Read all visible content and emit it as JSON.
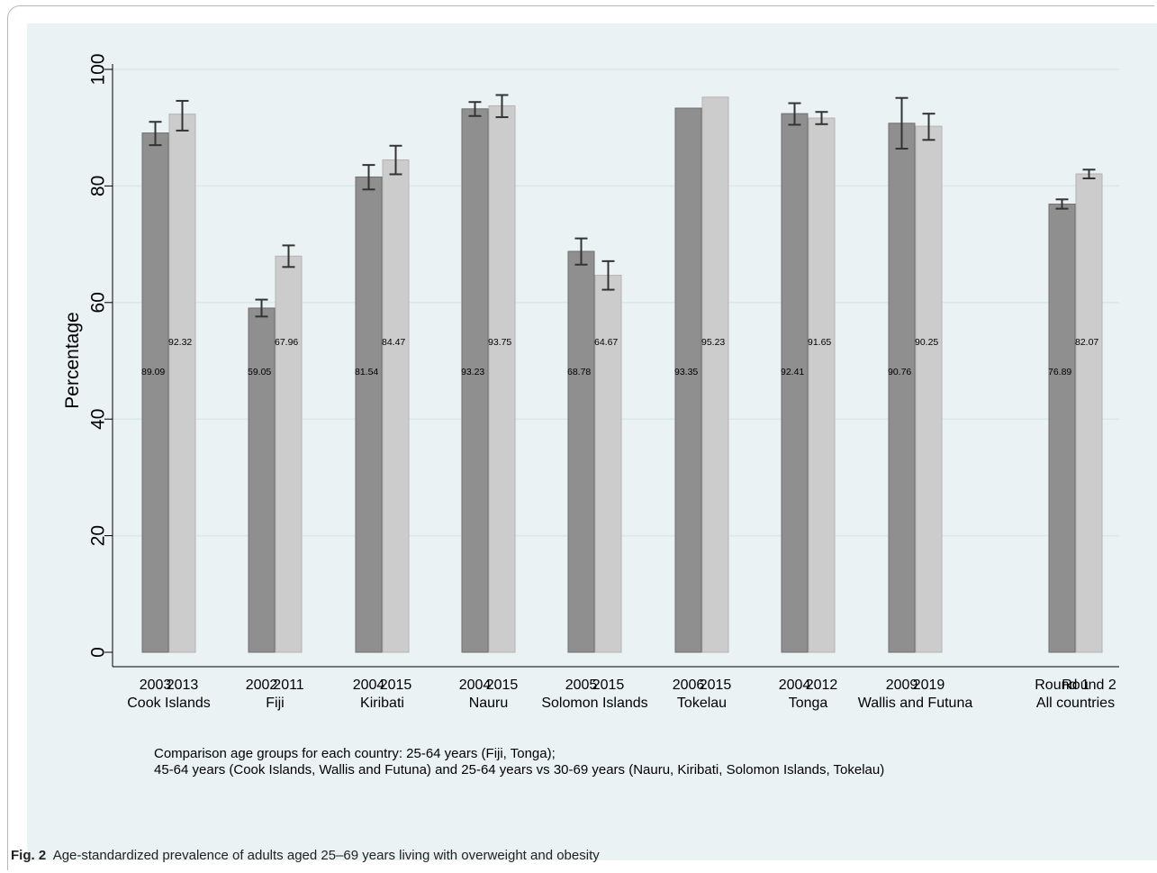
{
  "figure": {
    "caption_label": "Fig. 2",
    "caption_text": "Age-standardized prevalence of adults aged 25–69 years living with overweight and obesity"
  },
  "note": {
    "line1": "Comparison age groups for each country: 25-64 years (Fiji, Tonga);",
    "line2": "45-64 years (Cook Islands, Wallis and Futuna) and 25-64 years vs 30-69 years (Nauru, Kiribati, Solomon Islands, Tokelau)"
  },
  "colors": {
    "panel_bg": "#eaf2f3",
    "bar_round1": "#8f8f8f",
    "bar_round2": "#cccccc",
    "gridline": "#d9e8ea",
    "errorbar": "#333333"
  },
  "chart_data": {
    "type": "bar",
    "title": "",
    "xlabel": "",
    "ylabel": "Percentage",
    "ylim": [
      0,
      100
    ],
    "yticks": [
      "0",
      "20",
      "40",
      "60",
      "80",
      "100"
    ],
    "grid": true,
    "groups": [
      {
        "name": "Cook Islands",
        "bars": [
          {
            "label": "2003",
            "value": 89.09,
            "display": "89.09",
            "ci": [
              87.0,
              91.0
            ]
          },
          {
            "label": "2013",
            "value": 92.32,
            "display": "92.32",
            "ci": [
              89.5,
              94.6
            ]
          }
        ]
      },
      {
        "name": "Fiji",
        "bars": [
          {
            "label": "2002",
            "value": 59.05,
            "display": "59.05",
            "ci": [
              57.6,
              60.5
            ]
          },
          {
            "label": "2011",
            "value": 67.96,
            "display": "67.96",
            "ci": [
              66.1,
              69.8
            ]
          }
        ]
      },
      {
        "name": "Kiribati",
        "bars": [
          {
            "label": "2004",
            "value": 81.54,
            "display": "81.54",
            "ci": [
              79.4,
              83.6
            ]
          },
          {
            "label": "2015",
            "value": 84.47,
            "display": "84.47",
            "ci": [
              82.0,
              86.9
            ]
          }
        ]
      },
      {
        "name": "Nauru",
        "bars": [
          {
            "label": "2004",
            "value": 93.23,
            "display": "93.23",
            "ci": [
              92.0,
              94.4
            ]
          },
          {
            "label": "2015",
            "value": 93.75,
            "display": "93.75",
            "ci": [
              91.8,
              95.6
            ]
          }
        ]
      },
      {
        "name": "Solomon Islands",
        "bars": [
          {
            "label": "2005",
            "value": 68.78,
            "display": "68.78",
            "ci": [
              66.5,
              71.0
            ]
          },
          {
            "label": "2015",
            "value": 64.67,
            "display": "64.67",
            "ci": [
              62.2,
              67.1
            ]
          }
        ]
      },
      {
        "name": "Tokelau",
        "bars": [
          {
            "label": "2006",
            "value": 93.35,
            "display": "93.35",
            "ci": null
          },
          {
            "label": "2015",
            "value": 95.23,
            "display": "95.23",
            "ci": null
          }
        ]
      },
      {
        "name": "Tonga",
        "bars": [
          {
            "label": "2004",
            "value": 92.41,
            "display": "92.41",
            "ci": [
              90.5,
              94.2
            ]
          },
          {
            "label": "2012",
            "value": 91.65,
            "display": "91.65",
            "ci": [
              90.6,
              92.7
            ]
          }
        ]
      },
      {
        "name": "Wallis and Futuna",
        "bars": [
          {
            "label": "2009",
            "value": 90.76,
            "display": "90.76",
            "ci": [
              86.4,
              95.1
            ]
          },
          {
            "label": "2019",
            "value": 90.25,
            "display": "90.25",
            "ci": [
              87.9,
              92.4
            ]
          }
        ]
      },
      {
        "name": "All countries",
        "bars": [
          {
            "label": "Round 1",
            "value": 76.89,
            "display": "76.89",
            "ci": [
              76.1,
              77.7
            ]
          },
          {
            "label": "Round 2",
            "value": 82.07,
            "display": "82.07",
            "ci": [
              81.3,
              82.8
            ]
          }
        ]
      }
    ]
  }
}
